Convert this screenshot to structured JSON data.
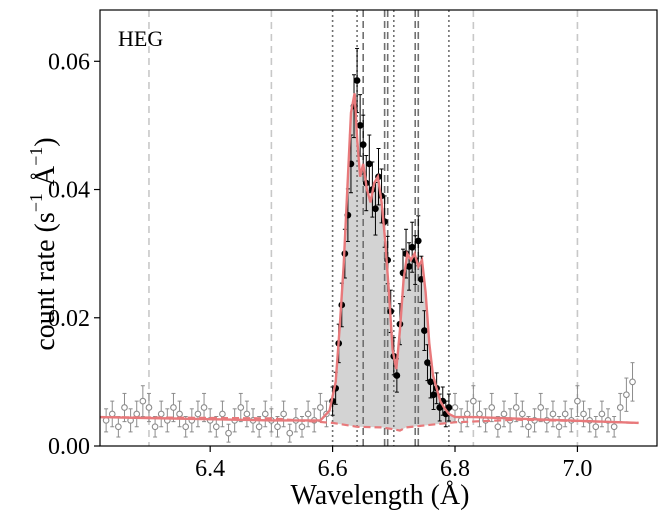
{
  "chart_data": {
    "type": "scatter",
    "title": "HEG",
    "xlabel": "Wavelength (Å)",
    "ylabel_prefix": "count rate (s",
    "ylabel_exp1": "−1",
    "ylabel_mid": " Å",
    "ylabel_exp2": "−1",
    "ylabel_suffix": ")",
    "xlim": [
      6.22,
      7.13
    ],
    "ylim": [
      0.0,
      0.068
    ],
    "xticks": [
      6.4,
      6.6,
      6.8,
      7.0
    ],
    "xtick_labels": [
      "6.4",
      "6.6",
      "6.8",
      "7.0"
    ],
    "yticks": [
      0.0,
      0.02,
      0.04,
      0.06
    ],
    "ytick_labels": [
      "0.00",
      "0.02",
      "0.04",
      "0.06"
    ],
    "gray_dashed_lines": [
      6.3,
      6.5,
      6.83,
      7.0
    ],
    "dark_dotted_lines": [
      6.6,
      6.64,
      6.7,
      6.79
    ],
    "dark_dashed_lines": [
      6.65,
      6.685,
      6.69,
      6.735,
      6.74
    ],
    "colors": {
      "model": "#e8797b",
      "background": "#e8797b",
      "fill": "#d3d3d3",
      "in_band_points": "#000000",
      "out_band_points": "#8c8c8c",
      "gray_lines": "#c8c8c8",
      "dark_lines": "#707070"
    },
    "series": [
      {
        "name": "model",
        "x": [
          6.22,
          6.5,
          6.58,
          6.595,
          6.605,
          6.612,
          6.618,
          6.624,
          6.63,
          6.636,
          6.64,
          6.645,
          6.65,
          6.656,
          6.662,
          6.668,
          6.674,
          6.68,
          6.686,
          6.692,
          6.698,
          6.704,
          6.71,
          6.716,
          6.722,
          6.728,
          6.734,
          6.74,
          6.746,
          6.752,
          6.758,
          6.764,
          6.77,
          6.776,
          6.782,
          6.79,
          6.8,
          6.83,
          7.1
        ],
        "y": [
          0.0045,
          0.004,
          0.004,
          0.0055,
          0.01,
          0.019,
          0.028,
          0.04,
          0.052,
          0.055,
          0.048,
          0.042,
          0.044,
          0.04,
          0.038,
          0.041,
          0.042,
          0.038,
          0.032,
          0.024,
          0.015,
          0.012,
          0.018,
          0.026,
          0.03,
          0.029,
          0.03,
          0.028,
          0.029,
          0.024,
          0.016,
          0.011,
          0.009,
          0.007,
          0.006,
          0.005,
          0.0045,
          0.0045,
          0.0036
        ]
      },
      {
        "name": "background",
        "x": [
          6.22,
          6.5,
          6.6,
          6.64,
          6.68,
          6.7,
          6.71,
          6.72,
          6.74,
          6.76,
          6.8,
          6.9,
          7.0,
          7.1
        ],
        "y": [
          0.0045,
          0.0043,
          0.0036,
          0.003,
          0.0029,
          0.0026,
          0.0024,
          0.0029,
          0.0031,
          0.0033,
          0.0037,
          0.0041,
          0.0039,
          0.0036
        ]
      }
    ],
    "points_in_band": {
      "x": [
        6.6,
        6.605,
        6.61,
        6.615,
        6.62,
        6.625,
        6.63,
        6.635,
        6.64,
        6.645,
        6.65,
        6.655,
        6.66,
        6.665,
        6.67,
        6.675,
        6.68,
        6.685,
        6.69,
        6.695,
        6.7,
        6.705,
        6.71,
        6.715,
        6.72,
        6.725,
        6.73,
        6.735,
        6.74,
        6.745,
        6.75,
        6.755,
        6.76,
        6.765,
        6.77,
        6.775,
        6.78,
        6.785,
        6.79
      ],
      "y": [
        0.007,
        0.009,
        0.016,
        0.022,
        0.03,
        0.036,
        0.044,
        0.053,
        0.057,
        0.05,
        0.047,
        0.041,
        0.044,
        0.04,
        0.037,
        0.042,
        0.039,
        0.035,
        0.029,
        0.021,
        0.014,
        0.011,
        0.019,
        0.027,
        0.03,
        0.028,
        0.031,
        0.029,
        0.032,
        0.026,
        0.018,
        0.013,
        0.01,
        0.008,
        0.009,
        0.006,
        0.007,
        0.005,
        0.006
      ],
      "err": [
        0.0022,
        0.0025,
        0.003,
        0.0034,
        0.0038,
        0.0041,
        0.0045,
        0.0049,
        0.005,
        0.0048,
        0.0046,
        0.0043,
        0.0045,
        0.0043,
        0.0041,
        0.0044,
        0.0042,
        0.004,
        0.0037,
        0.0033,
        0.0029,
        0.0026,
        0.0032,
        0.0037,
        0.0038,
        0.0037,
        0.0039,
        0.0038,
        0.0039,
        0.0036,
        0.0031,
        0.0028,
        0.0025,
        0.0023,
        0.0024,
        0.0021,
        0.0022,
        0.002,
        0.0021
      ]
    },
    "points_out_band": {
      "x": [
        6.23,
        6.24,
        6.25,
        6.26,
        6.27,
        6.28,
        6.29,
        6.3,
        6.31,
        6.32,
        6.33,
        6.34,
        6.35,
        6.36,
        6.37,
        6.38,
        6.39,
        6.4,
        6.41,
        6.42,
        6.43,
        6.44,
        6.45,
        6.46,
        6.47,
        6.48,
        6.49,
        6.5,
        6.51,
        6.52,
        6.53,
        6.54,
        6.55,
        6.56,
        6.57,
        6.58,
        6.59,
        6.8,
        6.81,
        6.82,
        6.83,
        6.84,
        6.85,
        6.86,
        6.87,
        6.88,
        6.89,
        6.9,
        6.91,
        6.92,
        6.93,
        6.94,
        6.95,
        6.96,
        6.97,
        6.98,
        6.99,
        7.0,
        7.01,
        7.02,
        7.03,
        7.04,
        7.05,
        7.06,
        7.07,
        7.08,
        7.09
      ],
      "y": [
        0.004,
        0.005,
        0.003,
        0.006,
        0.004,
        0.005,
        0.007,
        0.006,
        0.003,
        0.005,
        0.004,
        0.006,
        0.005,
        0.003,
        0.004,
        0.005,
        0.006,
        0.004,
        0.003,
        0.005,
        0.002,
        0.004,
        0.006,
        0.005,
        0.004,
        0.003,
        0.005,
        0.004,
        0.003,
        0.005,
        0.002,
        0.004,
        0.003,
        0.005,
        0.004,
        0.006,
        0.005,
        0.006,
        0.004,
        0.005,
        0.007,
        0.005,
        0.004,
        0.006,
        0.003,
        0.005,
        0.004,
        0.006,
        0.005,
        0.003,
        0.004,
        0.006,
        0.004,
        0.005,
        0.003,
        0.005,
        0.004,
        0.007,
        0.005,
        0.004,
        0.003,
        0.005,
        0.004,
        0.003,
        0.006,
        0.008,
        0.01
      ],
      "err": [
        0.0018,
        0.002,
        0.0016,
        0.0022,
        0.0018,
        0.002,
        0.0024,
        0.0022,
        0.0016,
        0.002,
        0.0018,
        0.0022,
        0.002,
        0.0016,
        0.0018,
        0.002,
        0.0022,
        0.0018,
        0.0016,
        0.002,
        0.0014,
        0.0018,
        0.0022,
        0.002,
        0.0018,
        0.0016,
        0.002,
        0.0018,
        0.0016,
        0.002,
        0.0014,
        0.0018,
        0.0016,
        0.002,
        0.0018,
        0.0022,
        0.002,
        0.0022,
        0.0018,
        0.002,
        0.0024,
        0.002,
        0.0018,
        0.0022,
        0.0016,
        0.002,
        0.0018,
        0.0022,
        0.002,
        0.0016,
        0.0018,
        0.0022,
        0.0018,
        0.002,
        0.0016,
        0.002,
        0.0018,
        0.0024,
        0.002,
        0.0018,
        0.0016,
        0.002,
        0.0018,
        0.0016,
        0.0022,
        0.0026,
        0.003
      ]
    }
  }
}
